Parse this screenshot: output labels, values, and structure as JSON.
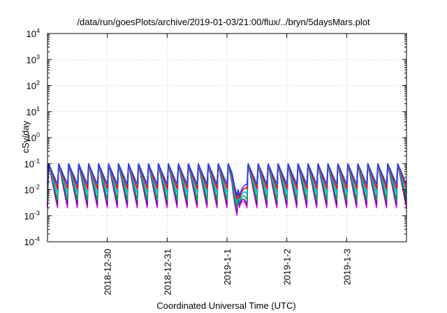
{
  "chart_data": {
    "type": "line",
    "title": "/data/run/goesPlots/archive/2019-01-03/21:00/flux/../bryn/5daysMars.plot",
    "xlabel": "Coordinated Universal Time (UTC)",
    "ylabel": "cSv/day",
    "yscale": "log",
    "ylim": [
      0.0001,
      10000
    ],
    "xlim": [
      "2018-12-29T00:00",
      "2019-01-04T00:00"
    ],
    "grid": true,
    "x_ticks": [
      {
        "label": "2018-12-30",
        "x": "2018-12-30T00:00"
      },
      {
        "label": "2018-12-31",
        "x": "2018-12-31T00:00"
      },
      {
        "label": "2019-1-1",
        "x": "2019-01-01T00:00"
      },
      {
        "label": "2019-1-2",
        "x": "2019-01-02T00:00"
      },
      {
        "label": "2019-1-3",
        "x": "2019-01-03T00:00"
      }
    ],
    "y_ticks": [
      {
        "base": "10",
        "exp": "-4",
        "value": 0.0001
      },
      {
        "base": "10",
        "exp": "-3",
        "value": 0.001
      },
      {
        "base": "10",
        "exp": "-2",
        "value": 0.01
      },
      {
        "base": "10",
        "exp": "-1",
        "value": 0.1
      },
      {
        "base": "10",
        "exp": "0",
        "value": 1
      },
      {
        "base": "10",
        "exp": "1",
        "value": 10
      },
      {
        "base": "10",
        "exp": "2",
        "value": 100
      },
      {
        "base": "10",
        "exp": "3",
        "value": 1000
      },
      {
        "base": "10",
        "exp": "4",
        "value": 10000
      }
    ],
    "series_pattern": {
      "sawtooth_period_hours": 4,
      "peak_value": 0.1,
      "dip": {
        "start": "2019-01-01T02:00",
        "end": "2019-01-01T08:00",
        "min_value": 0.0005
      }
    },
    "series": [
      {
        "color": "#ff00ff",
        "trough": 0.002
      },
      {
        "color": "#6a1b9a",
        "trough": 0.0025
      },
      {
        "color": "#00a651",
        "trough": 0.004
      },
      {
        "color": "#00bcd4",
        "trough": 0.007
      },
      {
        "color": "#ff0000",
        "trough": 0.011
      },
      {
        "color": "#1e40ff",
        "trough": 0.016
      }
    ]
  }
}
